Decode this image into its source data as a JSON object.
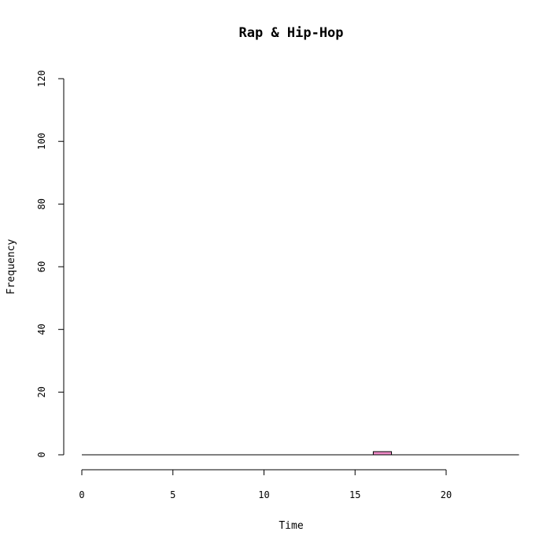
{
  "chart_data": {
    "type": "bar",
    "title": "Rap & Hip-Hop",
    "xlabel": "Time",
    "ylabel": "Frequency",
    "x_ticks": [
      "0",
      "5",
      "10",
      "15",
      "20"
    ],
    "x_tick_values": [
      0,
      5,
      10,
      15,
      20
    ],
    "y_ticks": [
      "0",
      "20",
      "40",
      "60",
      "80",
      "100",
      "120"
    ],
    "y_tick_values": [
      0,
      20,
      40,
      60,
      80,
      100,
      120
    ],
    "xlim": [
      0,
      24
    ],
    "ylim": [
      0,
      120
    ],
    "bin_width": 1,
    "bins": [
      {
        "start": 0,
        "count": 0
      },
      {
        "start": 1,
        "count": 0
      },
      {
        "start": 2,
        "count": 0
      },
      {
        "start": 3,
        "count": 0
      },
      {
        "start": 4,
        "count": 0
      },
      {
        "start": 5,
        "count": 0
      },
      {
        "start": 6,
        "count": 0
      },
      {
        "start": 7,
        "count": 0
      },
      {
        "start": 8,
        "count": 0
      },
      {
        "start": 9,
        "count": 0
      },
      {
        "start": 10,
        "count": 0
      },
      {
        "start": 11,
        "count": 0
      },
      {
        "start": 12,
        "count": 0
      },
      {
        "start": 13,
        "count": 0
      },
      {
        "start": 14,
        "count": 0
      },
      {
        "start": 15,
        "count": 0
      },
      {
        "start": 16,
        "count": 1
      },
      {
        "start": 17,
        "count": 0
      },
      {
        "start": 18,
        "count": 0
      },
      {
        "start": 19,
        "count": 0
      },
      {
        "start": 20,
        "count": 0
      },
      {
        "start": 21,
        "count": 0
      },
      {
        "start": 22,
        "count": 0
      },
      {
        "start": 23,
        "count": 0
      }
    ],
    "bar_color": "#f08cc8",
    "grid": false
  }
}
